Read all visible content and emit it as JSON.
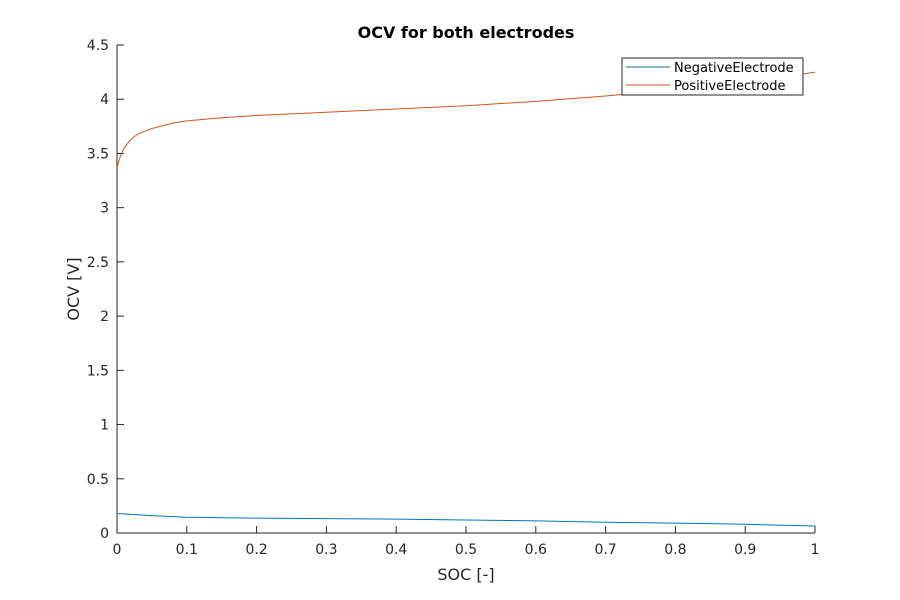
{
  "chart_data": {
    "type": "line",
    "title": "OCV for both electrodes",
    "xlabel": "SOC [-]",
    "ylabel": "OCV [V]",
    "xlim": [
      0,
      1
    ],
    "ylim": [
      0,
      4.5
    ],
    "xticks": [
      "0",
      "0.1",
      "0.2",
      "0.3",
      "0.4",
      "0.5",
      "0.6",
      "0.7",
      "0.8",
      "0.9",
      "1"
    ],
    "yticks": [
      "0",
      "0.5",
      "1",
      "1.5",
      "2",
      "2.5",
      "3",
      "3.5",
      "4",
      "4.5"
    ],
    "grid": false,
    "legend_position": "top-right",
    "series": [
      {
        "name": "NegativeElectrode",
        "color": "#0072BD",
        "x": [
          0,
          0.05,
          0.1,
          0.15,
          0.2,
          0.3,
          0.4,
          0.5,
          0.6,
          0.7,
          0.8,
          0.9,
          1.0
        ],
        "y": [
          0.18,
          0.16,
          0.145,
          0.14,
          0.137,
          0.133,
          0.128,
          0.12,
          0.112,
          0.1,
          0.091,
          0.08,
          0.065
        ]
      },
      {
        "name": "PositiveElectrode",
        "color": "#D95319",
        "x": [
          0,
          0.005,
          0.01,
          0.02,
          0.03,
          0.05,
          0.08,
          0.1,
          0.15,
          0.2,
          0.3,
          0.4,
          0.5,
          0.6,
          0.7,
          0.8,
          0.9,
          1.0
        ],
        "y": [
          3.37,
          3.48,
          3.55,
          3.63,
          3.68,
          3.73,
          3.78,
          3.8,
          3.83,
          3.85,
          3.88,
          3.91,
          3.94,
          3.98,
          4.03,
          4.09,
          4.15,
          4.25
        ]
      }
    ]
  }
}
